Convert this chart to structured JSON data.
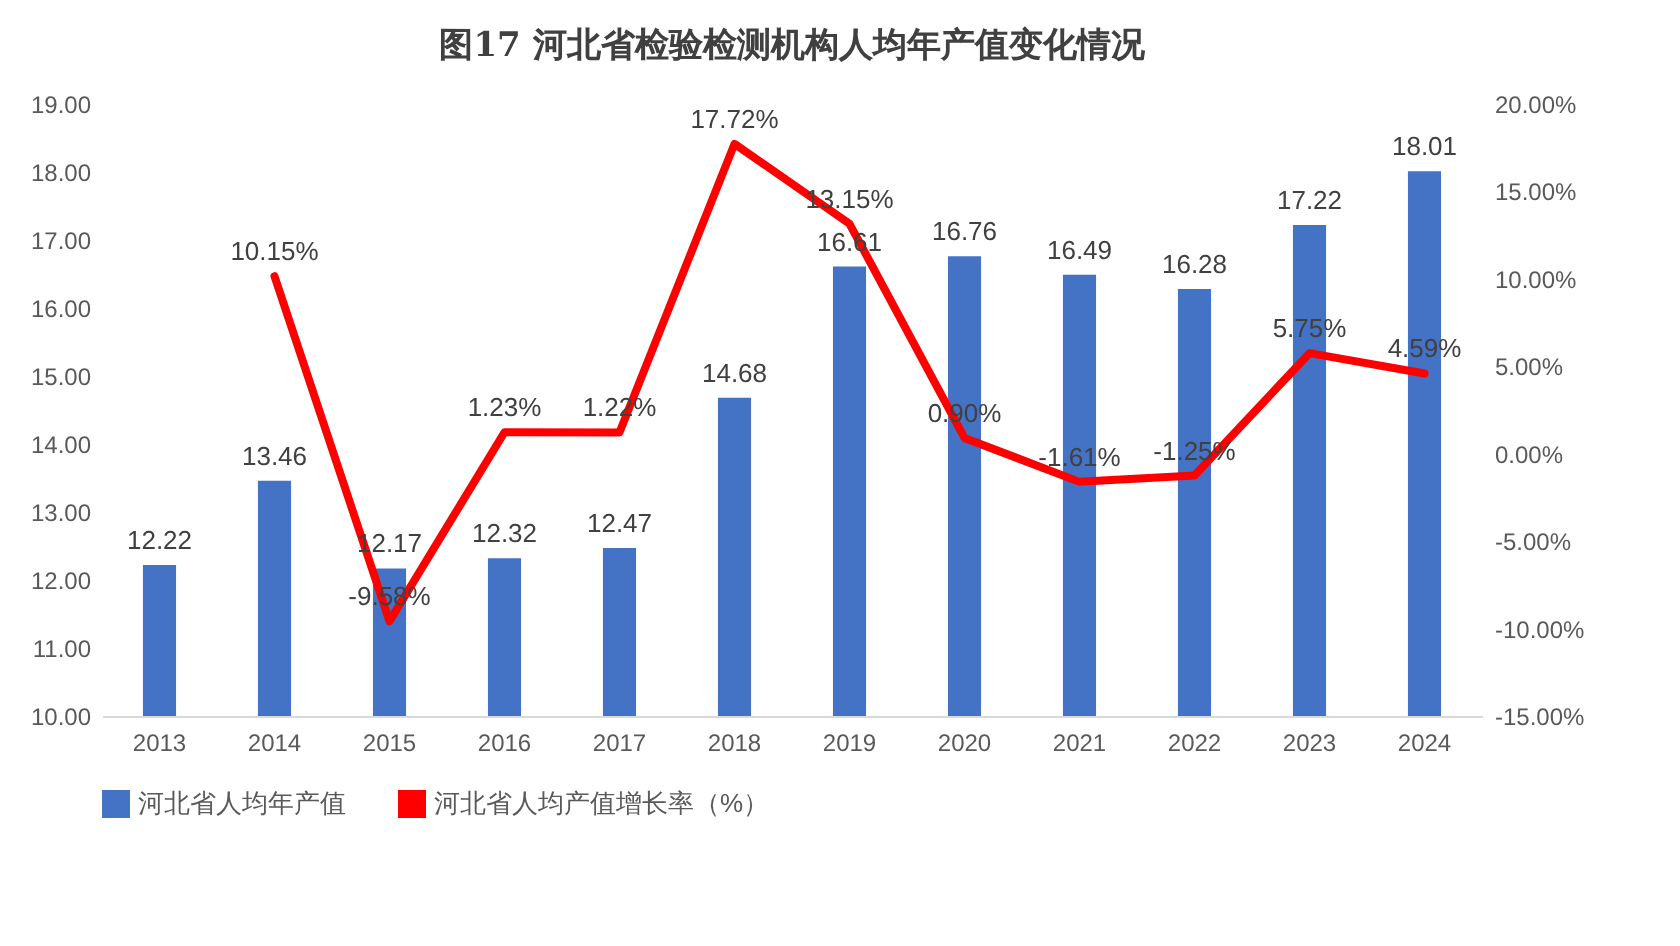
{
  "chart_data": {
    "type": "bar",
    "title": "图17  河北省检验检测机构人均年产值变化情况",
    "categories": [
      "2013",
      "2014",
      "2015",
      "2016",
      "2017",
      "2018",
      "2019",
      "2020",
      "2021",
      "2022",
      "2023",
      "2024"
    ],
    "series": [
      {
        "name": "河北省人均年产值",
        "color": "#4472c4",
        "values": [
          12.22,
          13.46,
          12.17,
          12.32,
          12.47,
          14.68,
          16.61,
          16.76,
          16.49,
          16.28,
          17.22,
          18.01
        ],
        "value_labels": [
          "12.22",
          "13.46",
          "12.17",
          "12.32",
          "12.47",
          "14.68",
          "16.61",
          "16.76",
          "16.49",
          "16.28",
          "17.22",
          "18.01"
        ]
      },
      {
        "name": "河北省人均产值增长率（%）",
        "type": "line",
        "axis": "y2",
        "color": "#ff0000",
        "values": [
          null,
          10.15,
          -9.58,
          1.23,
          1.22,
          17.72,
          13.15,
          0.9,
          -1.61,
          -1.25,
          5.75,
          4.59
        ],
        "value_labels": [
          null,
          "10.15%",
          "-9.58%",
          "1.23%",
          "1.22%",
          "17.72%",
          "13.15%",
          "0.90%",
          "-1.61%",
          "-1.25%",
          "5.75%",
          "4.59%"
        ]
      }
    ],
    "ylim": [
      10,
      19
    ],
    "yticks": [
      {
        "value": 10,
        "label": "10.00"
      },
      {
        "value": 11,
        "label": "11.00"
      },
      {
        "value": 12,
        "label": "12.00"
      },
      {
        "value": 13,
        "label": "13.00"
      },
      {
        "value": 14,
        "label": "14.00"
      },
      {
        "value": 15,
        "label": "15.00"
      },
      {
        "value": 16,
        "label": "16.00"
      },
      {
        "value": 17,
        "label": "17.00"
      },
      {
        "value": 18,
        "label": "18.00"
      },
      {
        "value": 19,
        "label": "19.00"
      }
    ],
    "y2lim": [
      -15,
      20
    ],
    "y2ticks": [
      {
        "value": -15,
        "label": "-15.00%"
      },
      {
        "value": -10,
        "label": "-10.00%"
      },
      {
        "value": -5,
        "label": "-5.00%"
      },
      {
        "value": 0,
        "label": "0.00%"
      },
      {
        "value": 5,
        "label": "5.00%"
      },
      {
        "value": 10,
        "label": "10.00%"
      },
      {
        "value": 15,
        "label": "15.00%"
      },
      {
        "value": 20,
        "label": "20.00%"
      }
    ],
    "legend": "bottom"
  }
}
